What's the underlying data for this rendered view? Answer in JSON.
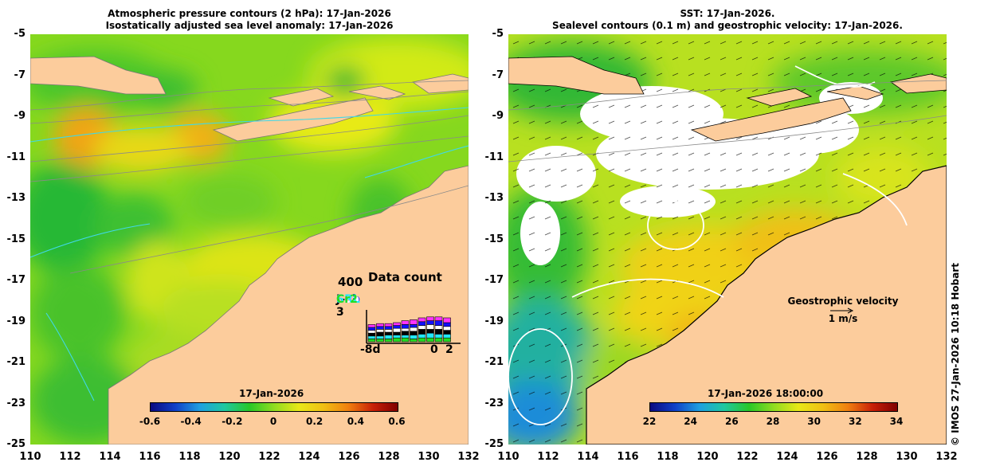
{
  "left_panel": {
    "title_line1": "Atmospheric pressure contours (2 hPa): 17-Jan-2026",
    "title_line2": "Isostatically adjusted sea level anomaly: 17-Jan-2026",
    "colorbar": {
      "date_label": "17-Jan-2026",
      "ticks": [
        "-0.6",
        "-0.4",
        "-0.2",
        "0",
        "0.2",
        "0.4",
        "0.6"
      ],
      "range": [
        -0.6,
        0.6
      ]
    },
    "data_count": {
      "title": "Data count",
      "max_label": "400",
      "satellites": [
        {
          "name": "S6a",
          "color": "#ff33ff"
        },
        {
          "name": "S3b",
          "color": "#1010ff"
        },
        {
          "name": "S3a",
          "color": "#ffffff"
        },
        {
          "name": "J-3",
          "color": "#000000"
        },
        {
          "name": "SRL",
          "color": "#22e8ff"
        },
        {
          "name": "Cr2",
          "color": "#22dd22"
        }
      ],
      "x_start_label": "-8d",
      "x_mid_label": "0",
      "x_end_label": "2"
    }
  },
  "right_panel": {
    "title_line1": "SST: 17-Jan-2026.",
    "title_line2": "Sealevel contours (0.1 m) and geostrophic velocity: 17-Jan-2026.",
    "colorbar": {
      "date_label": "17-Jan-2026 18:00:00",
      "ticks": [
        "22",
        "24",
        "26",
        "28",
        "30",
        "32",
        "34"
      ],
      "range": [
        22,
        34
      ]
    },
    "legend": {
      "label": "Geostrophic velocity",
      "scale": "1 m/s"
    }
  },
  "axes": {
    "lat_ticks": [
      "-5",
      "-7",
      "-9",
      "-11",
      "-13",
      "-15",
      "-17",
      "-19",
      "-21",
      "-23",
      "-25"
    ],
    "lon_ticks": [
      "110",
      "112",
      "114",
      "116",
      "118",
      "120",
      "122",
      "124",
      "126",
      "128",
      "130",
      "132"
    ]
  },
  "credit": "© IMOS 27-Jan-2026 10:18 Hobart",
  "colors": {
    "land": "#fccc9c",
    "coast_line": "#777777",
    "contour_cyan": "#40d8e8"
  }
}
